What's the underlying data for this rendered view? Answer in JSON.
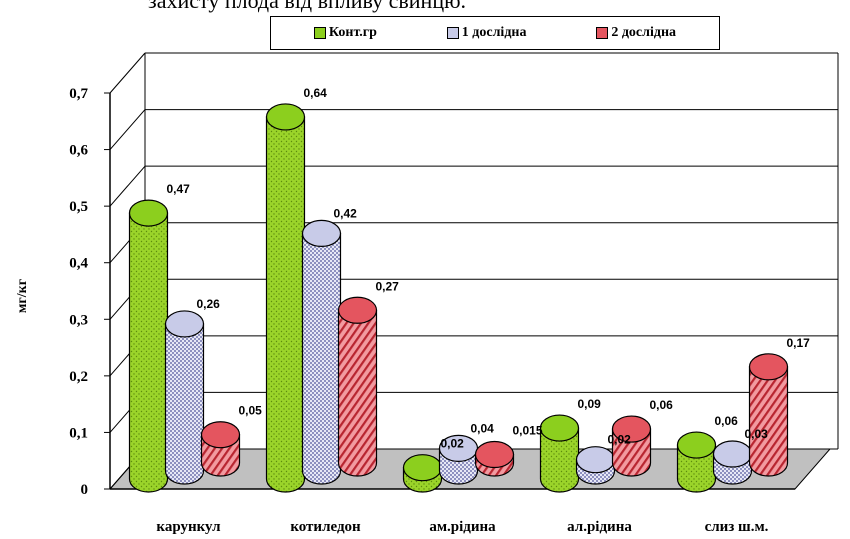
{
  "header_text": "захисту плода від впливу свинцю.",
  "chart_data": {
    "type": "bar",
    "ylabel": "мг/кг",
    "ylim": [
      0,
      0.7
    ],
    "yticks": [
      "0",
      "0,1",
      "0,2",
      "0,3",
      "0,4",
      "0,5",
      "0,6",
      "0,7"
    ],
    "categories": [
      "карункул",
      "котиледон",
      "ам.рідина",
      "ал.рідина",
      "слиз ш.м."
    ],
    "series": [
      {
        "name": "Конт.гр",
        "color": "#8ccf1e",
        "values": [
          0.47,
          0.64,
          0.02,
          0.09,
          0.06
        ],
        "labels": [
          "0,47",
          "0,64",
          "0,02",
          "0,09",
          "0,06"
        ]
      },
      {
        "name": "1 дослідна",
        "color": "#c8cbe8",
        "values": [
          0.26,
          0.42,
          0.04,
          0.02,
          0.03
        ],
        "labels": [
          "0,26",
          "0,42",
          "0,04",
          "0,02",
          "0,03"
        ]
      },
      {
        "name": "2 дослідна",
        "color": "#e4555f",
        "values": [
          0.05,
          0.27,
          0.015,
          0.06,
          0.17
        ],
        "labels": [
          "0,05",
          "0,27",
          "0,015",
          "0,06",
          "0,17"
        ]
      }
    ],
    "legend_position": "top",
    "grid": true
  }
}
